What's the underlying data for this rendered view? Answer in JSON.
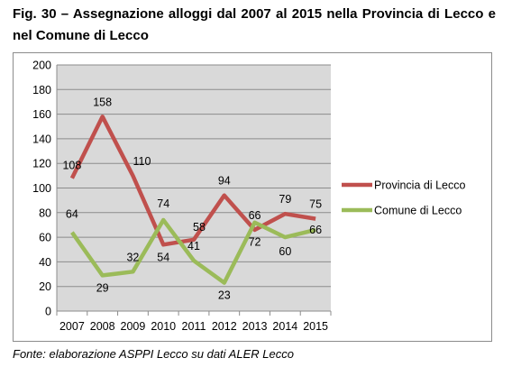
{
  "title": "Fig. 30 – Assegnazione alloggi dal 2007 al 2015 nella Provincia di Lecco e nel Comune di Lecco",
  "source": "Fonte: elaborazione ASPPI Lecco su dati ALER Lecco",
  "chart_data": {
    "type": "line",
    "title": "",
    "xlabel": "",
    "ylabel": "",
    "categories": [
      "2007",
      "2008",
      "2009",
      "2010",
      "2011",
      "2012",
      "2013",
      "2014",
      "2015"
    ],
    "ylim": [
      0,
      200
    ],
    "yticks": [
      0,
      20,
      40,
      60,
      80,
      100,
      120,
      140,
      160,
      180,
      200
    ],
    "grid": true,
    "legend": "right",
    "series": [
      {
        "name": "Provincia di Lecco",
        "color": "#c0504d",
        "values": [
          108,
          158,
          110,
          54,
          58,
          94,
          66,
          79,
          75
        ]
      },
      {
        "name": "Comune di Lecco",
        "color": "#9bbb59",
        "values": [
          64,
          29,
          32,
          74,
          41,
          23,
          72,
          60,
          66
        ]
      }
    ]
  }
}
